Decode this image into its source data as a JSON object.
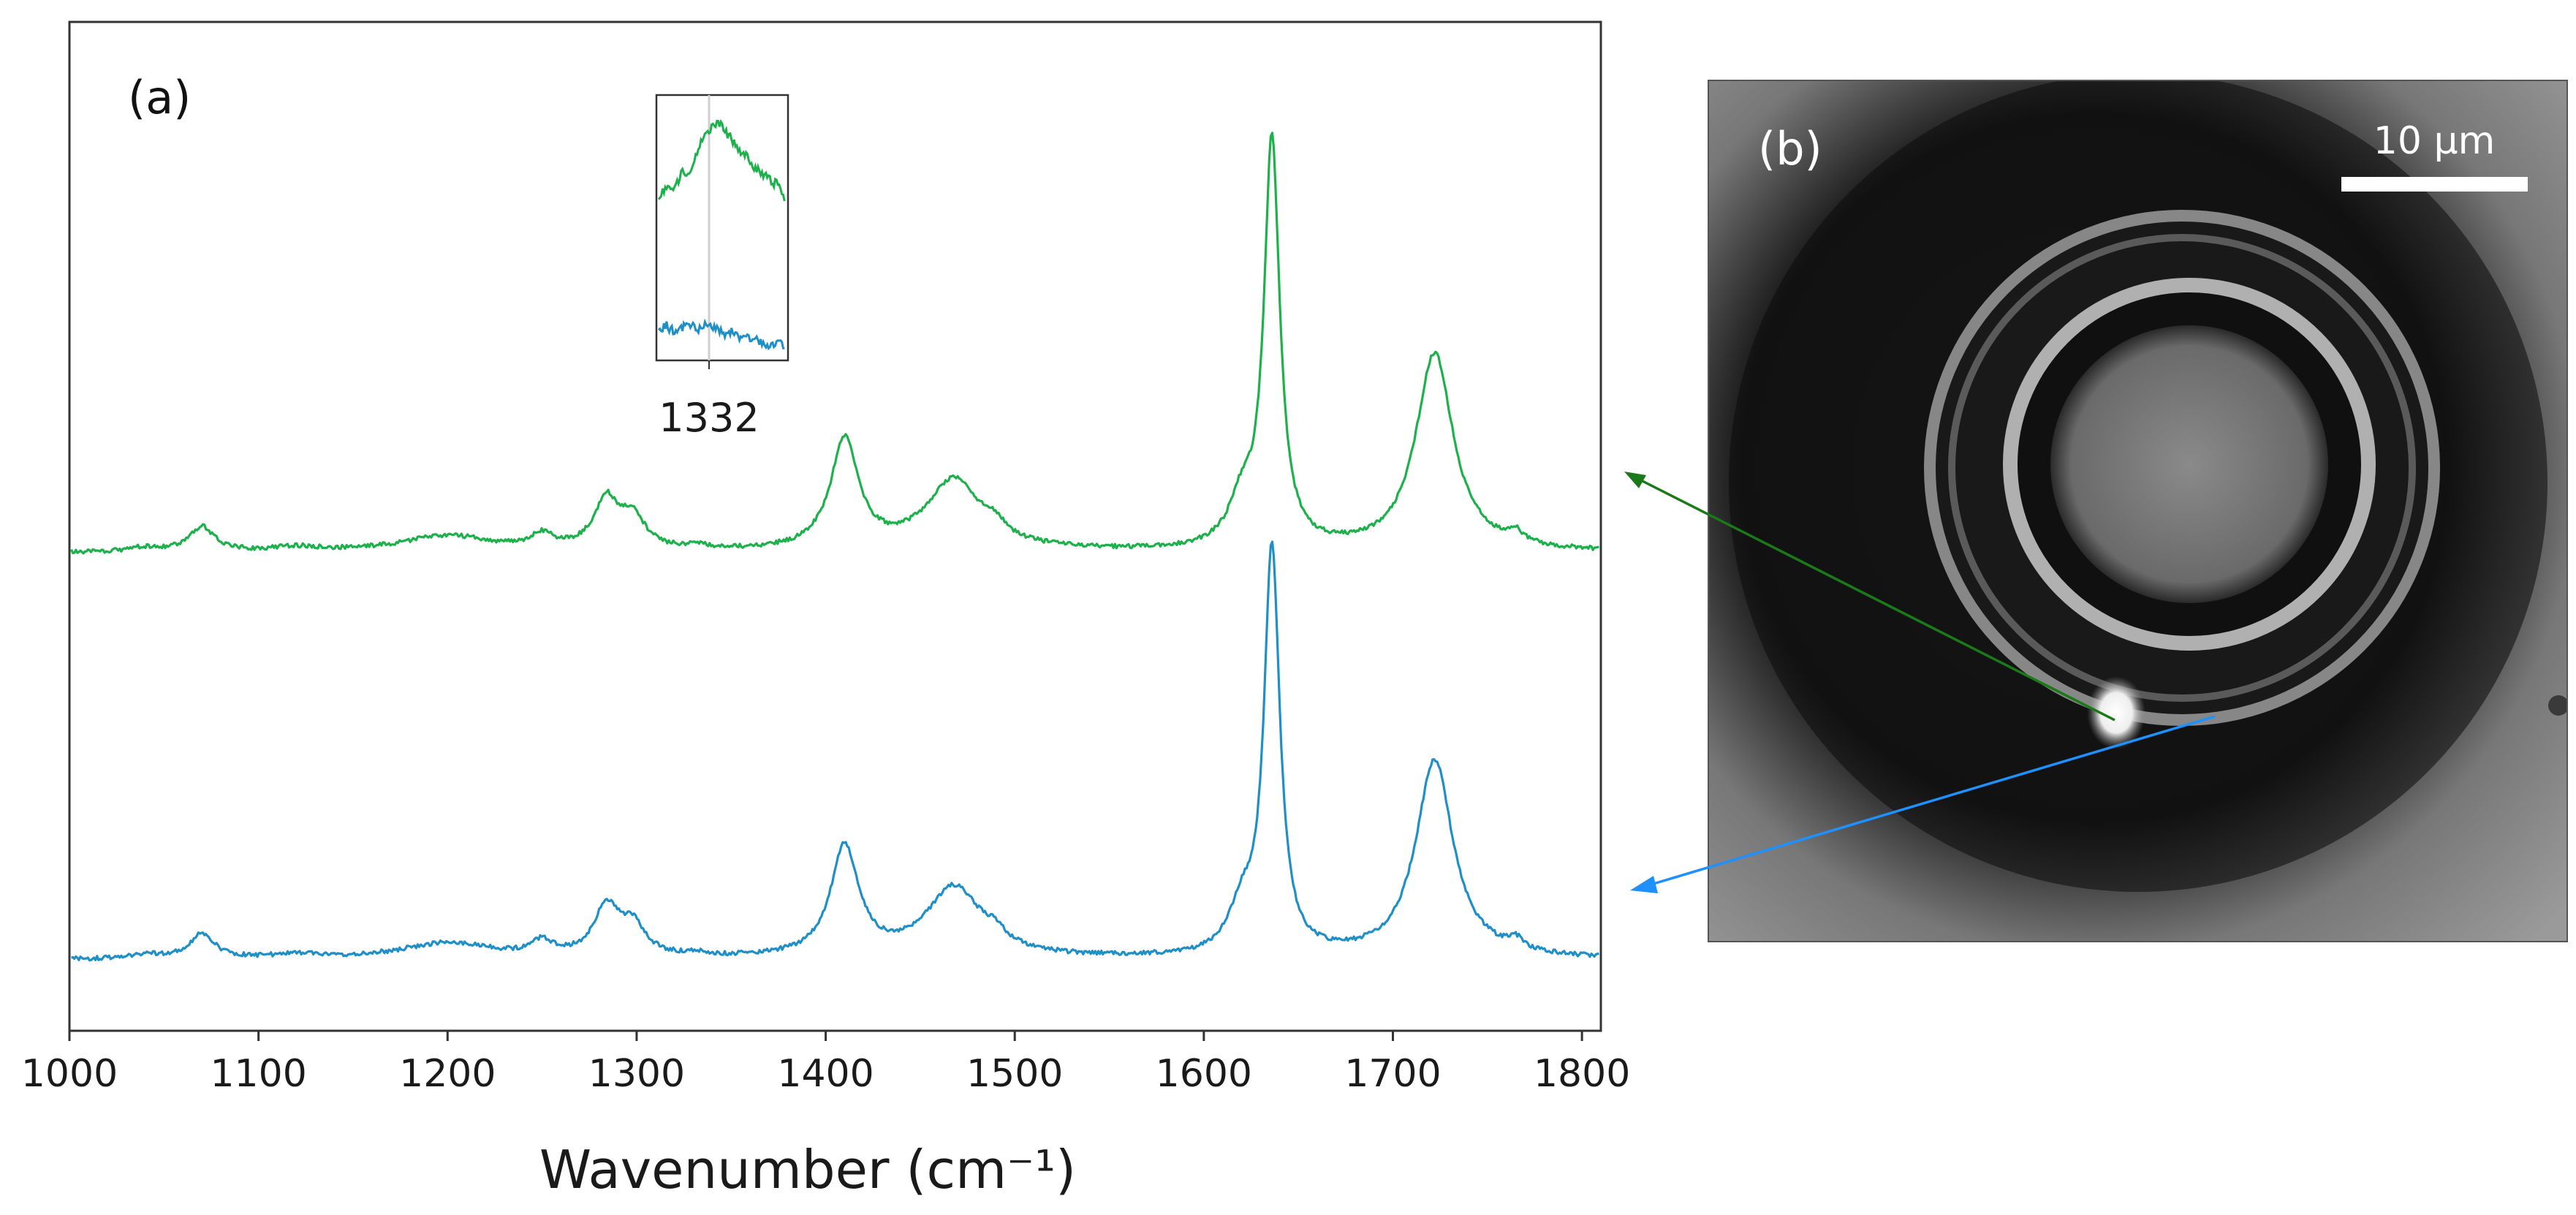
{
  "panel_a_label": "(a)",
  "panel_b_label": "(b)",
  "scale_bar_label": "10 μm",
  "x_axis_title": "Wavenumber (cm⁻¹)",
  "inset_tick_label": "1332",
  "colors": {
    "green_series": "#1db14b",
    "blue_series": "#1f8fc8",
    "green_arrow": "#1a7a1a",
    "blue_arrow": "#1e90ff",
    "axis": "#333333"
  },
  "chart_data": {
    "type": "line",
    "title": "",
    "xlabel": "Wavenumber (cm⁻¹)",
    "ylabel": "",
    "xlim": [
      1000,
      1810
    ],
    "ylim": [
      -0.15,
      2.7
    ],
    "grid": false,
    "x_ticks": [
      1000,
      1100,
      1200,
      1300,
      1400,
      1500,
      1600,
      1700,
      1800
    ],
    "x_tick_labels": [
      "1000",
      "1100",
      "1200",
      "1300",
      "1400",
      "1500",
      "1600",
      "1700",
      "1800"
    ],
    "baseline": 0.05,
    "offset": 1.15,
    "peaks": [
      {
        "center": 1070,
        "height": 0.07,
        "width": 8
      },
      {
        "center": 1040,
        "height": 0.012,
        "width": 10
      },
      {
        "center": 1120,
        "height": 0.012,
        "width": 15
      },
      {
        "center": 1200,
        "height": 0.045,
        "width": 30
      },
      {
        "center": 1250,
        "height": 0.04,
        "width": 7
      },
      {
        "center": 1284,
        "height": 0.14,
        "width": 8
      },
      {
        "center": 1298,
        "height": 0.085,
        "width": 8
      },
      {
        "center": 1332,
        "height": 0.01,
        "width": 6
      },
      {
        "center": 1410,
        "height": 0.31,
        "width": 9
      },
      {
        "center": 1468,
        "height": 0.2,
        "width": 18
      },
      {
        "center": 1490,
        "height": 0.03,
        "width": 6
      },
      {
        "center": 1620,
        "height": 0.12,
        "width": 8
      },
      {
        "center": 1636,
        "height": 1.15,
        "width": 5
      },
      {
        "center": 1722,
        "height": 0.56,
        "width": 12
      },
      {
        "center": 1765,
        "height": 0.03,
        "width": 5
      }
    ],
    "series": [
      {
        "name": "green",
        "offset_index": 1,
        "color": "#1db14b"
      },
      {
        "name": "blue",
        "offset_index": 0,
        "color": "#1f8fc8"
      }
    ],
    "inset": {
      "xlim": [
        1305,
        1360
      ],
      "marker_x": 1332,
      "tick_labels": [
        "1332"
      ],
      "series": [
        {
          "name": "green",
          "values": [
            0.62,
            0.66,
            0.64,
            0.72,
            0.7,
            0.8,
            0.85,
            0.9,
            0.88,
            0.84,
            0.8,
            0.77,
            0.73,
            0.71,
            0.68,
            0.66,
            0.6
          ]
        },
        {
          "name": "blue",
          "values": [
            0.12,
            0.13,
            0.11,
            0.12,
            0.14,
            0.12,
            0.13,
            0.12,
            0.1,
            0.11,
            0.09,
            0.1,
            0.08,
            0.07,
            0.06,
            0.07,
            0.05
          ]
        }
      ]
    }
  }
}
